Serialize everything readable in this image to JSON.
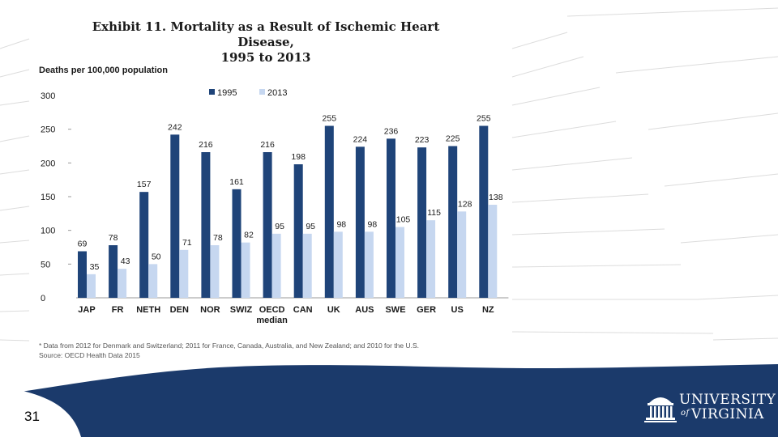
{
  "slide": {
    "number": "31"
  },
  "branding": {
    "line1": "UNIVERSITY",
    "of": "of",
    "line2": "VIRGINIA",
    "navy": "#1b3a6b"
  },
  "chart_data": {
    "type": "bar",
    "title": "Exhibit 11. Mortality as a Result of Ischemic Heart Disease, 1995 to 2013",
    "title_lines": [
      "Exhibit 11. Mortality as a Result of Ischemic Heart Disease,",
      "1995 to 2013"
    ],
    "ylabel": "Deaths per 100,000 population",
    "xlabel": "",
    "ylim": [
      0,
      300
    ],
    "yticks": [
      0,
      50,
      100,
      150,
      200,
      250,
      300
    ],
    "grid": false,
    "legend_position": "top",
    "categories": [
      "JAP",
      "FR",
      "NETH",
      "DEN",
      "NOR",
      "SWIZ",
      "OECD median",
      "CAN",
      "UK",
      "AUS",
      "SWE",
      "GER",
      "US",
      "NZ"
    ],
    "category_lines": [
      [
        "JAP"
      ],
      [
        "FR"
      ],
      [
        "NETH"
      ],
      [
        "DEN"
      ],
      [
        "NOR"
      ],
      [
        "SWIZ"
      ],
      [
        "OECD",
        "median"
      ],
      [
        "CAN"
      ],
      [
        "UK"
      ],
      [
        "AUS"
      ],
      [
        "SWE"
      ],
      [
        "GER"
      ],
      [
        "US"
      ],
      [
        "NZ"
      ]
    ],
    "series": [
      {
        "name": "1995",
        "color": "#1f4479",
        "values": [
          69,
          78,
          157,
          242,
          216,
          161,
          216,
          198,
          255,
          224,
          236,
          223,
          225,
          255
        ]
      },
      {
        "name": "2013",
        "color": "#c6d7f0",
        "values": [
          35,
          43,
          50,
          71,
          78,
          82,
          95,
          95,
          98,
          98,
          105,
          115,
          128,
          138
        ]
      }
    ],
    "footnote": "* Data from 2012 for Denmark and Switzerland; 2011 for France, Canada, Australia, and New Zealand; and 2010 for the U.S.",
    "source": "Source: OECD Health Data 2015"
  }
}
